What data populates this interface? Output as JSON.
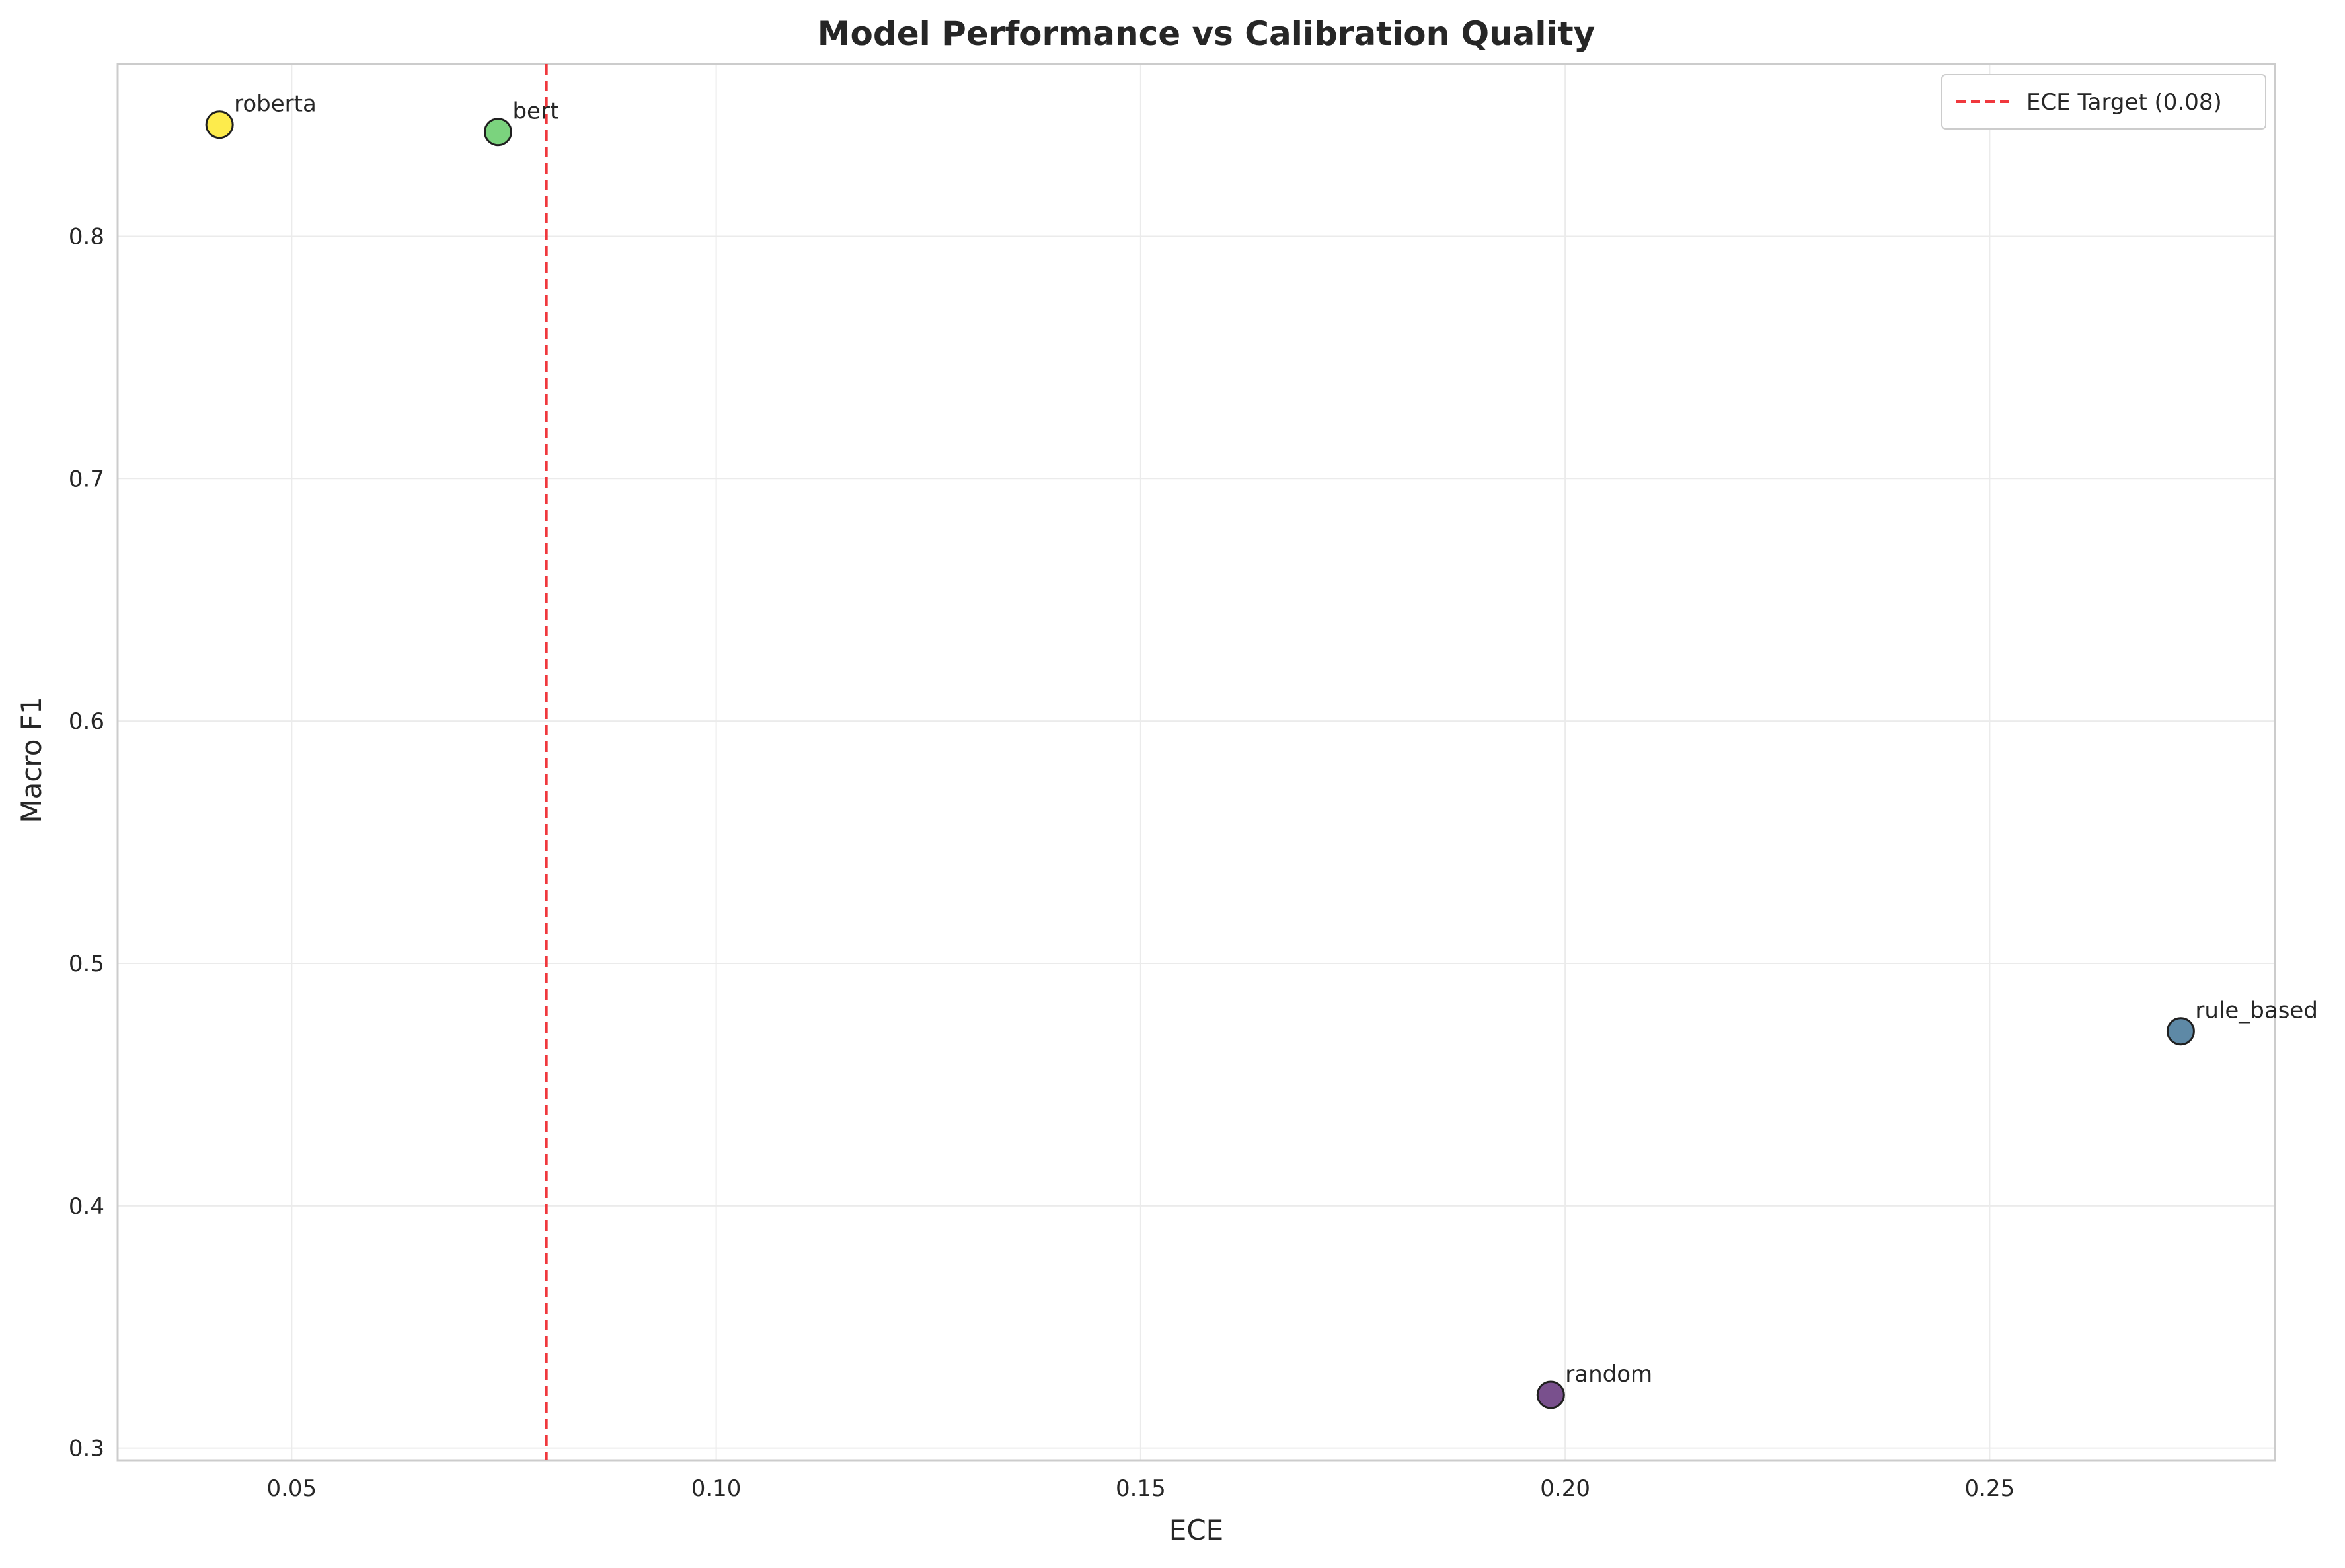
{
  "chart_data": {
    "type": "scatter",
    "title": "Model Performance vs Calibration Quality",
    "xlabel": "ECE",
    "ylabel": "Macro F1",
    "xlim": [
      0.0295,
      0.2836
    ],
    "ylim": [
      0.295,
      0.871
    ],
    "xticks": [
      0.05,
      0.1,
      0.15,
      0.2,
      0.25
    ],
    "xtick_labels": [
      "0.05",
      "0.10",
      "0.15",
      "0.20",
      "0.25"
    ],
    "yticks": [
      0.3,
      0.4,
      0.5,
      0.6,
      0.7,
      0.8
    ],
    "ytick_labels": [
      "0.3",
      "0.4",
      "0.5",
      "0.6",
      "0.7",
      "0.8"
    ],
    "grid": true,
    "legend_position": "top-right",
    "points": [
      {
        "label": "roberta",
        "x": 0.0415,
        "y": 0.846,
        "color": "#fde725"
      },
      {
        "label": "bert",
        "x": 0.0743,
        "y": 0.843,
        "color": "#5ec962"
      },
      {
        "label": "rule_based",
        "x": 0.2725,
        "y": 0.472,
        "color": "#3b6f93"
      },
      {
        "label": "random",
        "x": 0.1983,
        "y": 0.322,
        "color": "#5b2a74"
      }
    ],
    "reference_line": {
      "orientation": "vertical",
      "x": 0.08,
      "label": "ECE Target (0.08)",
      "color": "#f0383d",
      "style": "dashed"
    },
    "colors": {
      "grid": "#ebebeb",
      "spine": "#cccccc",
      "marker_edge": "#1f1f1f",
      "text": "#262626"
    }
  }
}
